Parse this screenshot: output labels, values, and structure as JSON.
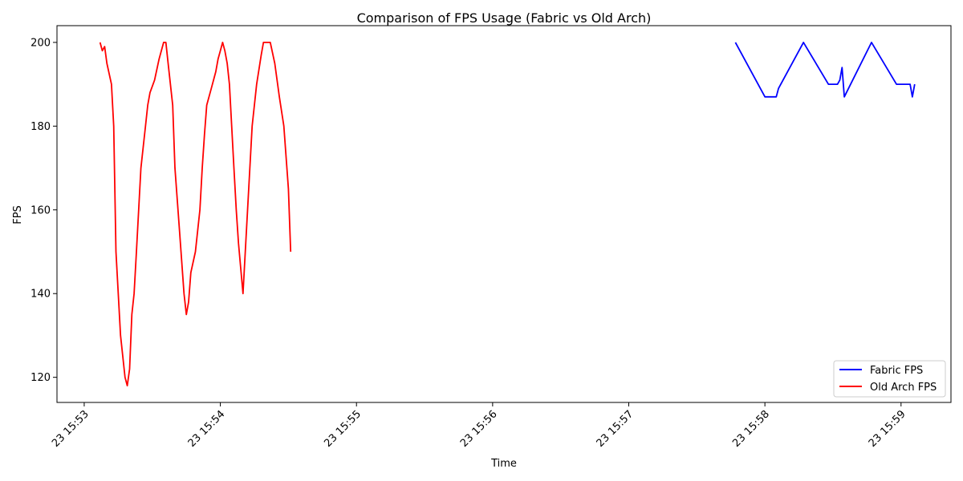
{
  "chart_data": {
    "type": "line",
    "title": "Comparison of FPS Usage (Fabric vs Old Arch)",
    "xlabel": "Time",
    "ylabel": "FPS",
    "x_ticks": [
      "23 15:53",
      "23 15:54",
      "23 15:55",
      "23 15:56",
      "23 15:57",
      "23 15:58",
      "23 15:59"
    ],
    "y_ticks": [
      120,
      140,
      160,
      180,
      200
    ],
    "xlim": [
      "15:52:48",
      "15:59:22"
    ],
    "ylim": [
      114,
      204
    ],
    "grid": false,
    "legend_position": "lower-right",
    "series": [
      {
        "name": "Fabric FPS",
        "color": "#0000ff",
        "points": [
          [
            "15:57:47",
            200
          ],
          [
            "15:58:00",
            187
          ],
          [
            "15:58:05",
            187
          ],
          [
            "15:58:06",
            189
          ],
          [
            "15:58:17",
            200
          ],
          [
            "15:58:28",
            190
          ],
          [
            "15:58:32",
            190
          ],
          [
            "15:58:33",
            191
          ],
          [
            "15:58:34",
            194
          ],
          [
            "15:58:35",
            187
          ],
          [
            "15:58:47",
            200
          ],
          [
            "15:58:58",
            190
          ],
          [
            "15:59:04",
            190
          ],
          [
            "15:59:05",
            187
          ],
          [
            "15:59:06",
            190
          ]
        ]
      },
      {
        "name": "Old Arch FPS",
        "color": "#ff0000",
        "points": [
          [
            "15:53:07",
            200
          ],
          [
            "15:53:08",
            198
          ],
          [
            "15:53:09",
            199
          ],
          [
            "15:53:10",
            195
          ],
          [
            "15:53:12",
            190
          ],
          [
            "15:53:13",
            180
          ],
          [
            "15:53:14",
            150
          ],
          [
            "15:53:16",
            130
          ],
          [
            "15:53:18",
            120
          ],
          [
            "15:53:19",
            118
          ],
          [
            "15:53:20",
            122
          ],
          [
            "15:53:21",
            135
          ],
          [
            "15:53:22",
            140
          ],
          [
            "15:53:23",
            150
          ],
          [
            "15:53:25",
            170
          ],
          [
            "15:53:27",
            180
          ],
          [
            "15:53:28",
            185
          ],
          [
            "15:53:29",
            188
          ],
          [
            "15:53:31",
            191
          ],
          [
            "15:53:33",
            196
          ],
          [
            "15:53:35",
            200
          ],
          [
            "15:53:36",
            200
          ],
          [
            "15:53:37",
            195
          ],
          [
            "15:53:39",
            185
          ],
          [
            "15:53:40",
            170
          ],
          [
            "15:53:42",
            155
          ],
          [
            "15:53:44",
            140
          ],
          [
            "15:53:45",
            135
          ],
          [
            "15:53:46",
            138
          ],
          [
            "15:53:47",
            145
          ],
          [
            "15:53:49",
            150
          ],
          [
            "15:53:50",
            155
          ],
          [
            "15:53:51",
            160
          ],
          [
            "15:53:52",
            170
          ],
          [
            "15:53:53",
            178
          ],
          [
            "15:53:54",
            185
          ],
          [
            "15:53:56",
            189
          ],
          [
            "15:53:57",
            191
          ],
          [
            "15:53:58",
            193
          ],
          [
            "15:53:59",
            196
          ],
          [
            "15:54:00",
            198
          ],
          [
            "15:54:01",
            200
          ],
          [
            "15:54:02",
            198
          ],
          [
            "15:54:03",
            195
          ],
          [
            "15:54:04",
            190
          ],
          [
            "15:54:05",
            180
          ],
          [
            "15:54:06",
            170
          ],
          [
            "15:54:07",
            160
          ],
          [
            "15:54:08",
            152
          ],
          [
            "15:54:10",
            140
          ],
          [
            "15:54:12",
            160
          ],
          [
            "15:54:14",
            180
          ],
          [
            "15:54:16",
            190
          ],
          [
            "15:54:18",
            197
          ],
          [
            "15:54:19",
            200
          ],
          [
            "15:54:22",
            200
          ],
          [
            "15:54:24",
            195
          ],
          [
            "15:54:26",
            187
          ],
          [
            "15:54:28",
            180
          ],
          [
            "15:54:30",
            165
          ],
          [
            "15:54:31",
            150
          ]
        ]
      }
    ]
  }
}
